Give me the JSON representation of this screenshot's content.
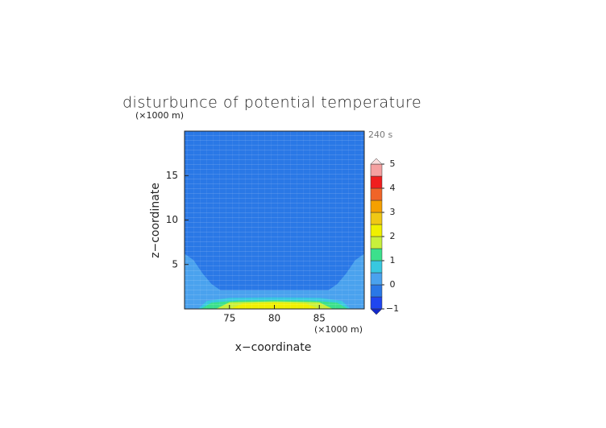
{
  "chart_data": {
    "type": "contour",
    "title": "disturbunce of potential temperature",
    "x_label": "x−coordinate",
    "y_label": "z−coordinate",
    "x_unit": "(×1000 m)",
    "y_unit": "(×1000 m)",
    "time_label": "240 s",
    "xlim": [
      70,
      90
    ],
    "ylim": [
      0,
      20
    ],
    "xticks": [
      75,
      80,
      85
    ],
    "yticks": [
      5,
      10,
      15
    ],
    "levels": [
      -1,
      -0.5,
      0,
      0.5,
      1,
      1.5,
      2,
      2.5,
      3,
      3.5,
      4,
      4.5,
      5
    ],
    "colors": [
      "#1f46f0",
      "#2a78e6",
      "#4aa2ee",
      "#38c8e0",
      "#3ce08c",
      "#c8f03c",
      "#f0f000",
      "#f0c814",
      "#f5a000",
      "#f06428",
      "#f01e1e",
      "#f5a0a0"
    ],
    "under_color": "#1428c8",
    "over_color": "#fadcdc",
    "colorbar_ticks": [
      {
        "value": -1,
        "label": "−1"
      },
      0,
      1,
      2,
      3,
      4,
      5
    ],
    "background_level": 1,
    "regions": [
      {
        "level": 2,
        "x": [
          70,
          70,
          71,
          72,
          73,
          74,
          86,
          87,
          88,
          89,
          90,
          90
        ],
        "y": [
          0,
          6.2,
          5.5,
          4,
          2.8,
          2.1,
          2.1,
          2.8,
          4,
          5.5,
          6.2,
          0
        ]
      },
      {
        "level": 3,
        "x": [
          71.5,
          72.5,
          75,
          80,
          85,
          87.5,
          88.5
        ],
        "y": [
          0,
          0.9,
          1.25,
          1.3,
          1.25,
          0.9,
          0
        ]
      },
      {
        "level": 4,
        "x": [
          71.8,
          73,
          76,
          80,
          84,
          87,
          88.2
        ],
        "y": [
          0,
          0.7,
          0.95,
          1,
          0.95,
          0.7,
          0
        ]
      },
      {
        "level": 5,
        "x": [
          73.5,
          75,
          80,
          85,
          86.5
        ],
        "y": [
          0,
          0.75,
          0.85,
          0.75,
          0
        ]
      },
      {
        "level": 6,
        "x": [
          75,
          76.5,
          80,
          83.5,
          85
        ],
        "y": [
          0,
          0.6,
          0.7,
          0.6,
          0
        ]
      }
    ]
  }
}
